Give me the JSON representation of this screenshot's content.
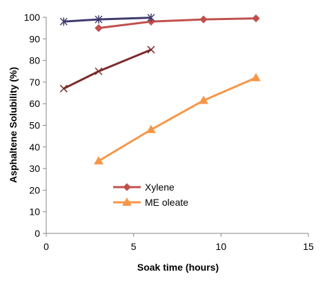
{
  "chart_data": {
    "type": "line",
    "title": "",
    "xlabel": "Soak time (hours)",
    "ylabel": "Asphaltene Solubility (%)",
    "xlim": [
      0,
      15
    ],
    "ylim": [
      0,
      100
    ],
    "x_ticks": [
      "0",
      "5",
      "10",
      "15"
    ],
    "y_ticks": [
      "0",
      "10",
      "20",
      "30",
      "40",
      "50",
      "60",
      "70",
      "80",
      "90",
      "100"
    ],
    "grid": false,
    "legend_position": "bottom-center",
    "series": [
      {
        "name": "Xylene",
        "color": "#C0504D",
        "marker": "diamond",
        "legend": true,
        "x": [
          3,
          6,
          9,
          12
        ],
        "y": [
          95,
          98,
          99,
          99.5
        ]
      },
      {
        "name": "ME oleate",
        "color": "#F79646",
        "marker": "triangle",
        "legend": true,
        "x": [
          3,
          6,
          9,
          12
        ],
        "y": [
          33.5,
          48,
          61.5,
          72
        ]
      },
      {
        "name": "",
        "color": "#3F3A6E",
        "marker": "star",
        "legend": false,
        "x": [
          1,
          3,
          6
        ],
        "y": [
          98,
          99,
          99.8
        ]
      },
      {
        "name": "",
        "color": "#7B2A2A",
        "marker": "x",
        "legend": false,
        "x": [
          1,
          3,
          6
        ],
        "y": [
          67,
          75,
          85
        ]
      }
    ]
  }
}
